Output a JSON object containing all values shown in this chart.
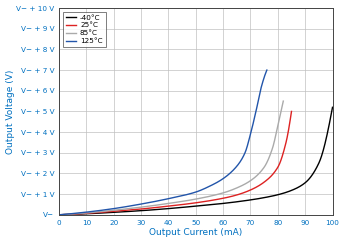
{
  "xlabel": "Output Current (mA)",
  "ylabel": "Output Voltage (V)",
  "xlim": [
    0,
    100
  ],
  "ylim": [
    0,
    10
  ],
  "ytick_labels": [
    "V−",
    "V− + 1 V",
    "V− + 2 V",
    "V− + 3 V",
    "V− + 4 V",
    "V− + 5 V",
    "V− + 6 V",
    "V− + 7 V",
    "V− + 8 V",
    "V− + 9 V",
    "V− + 10 V"
  ],
  "ytick_values": [
    0,
    1,
    2,
    3,
    4,
    5,
    6,
    7,
    8,
    9,
    10
  ],
  "xtick_values": [
    0,
    10,
    20,
    30,
    40,
    50,
    60,
    70,
    80,
    90,
    100
  ],
  "legend_labels": [
    "-40°C",
    "25°C",
    "85°C",
    "125°C"
  ],
  "legend_colors": [
    "#000000",
    "#dd2222",
    "#aaaaaa",
    "#2255aa"
  ],
  "background_color": "#ffffff",
  "grid_color": "#c0c0c0",
  "label_color": "#0070c0",
  "curves": {
    "neg40": {
      "color": "#000000",
      "pts_x": [
        0,
        10,
        20,
        30,
        40,
        50,
        60,
        70,
        75,
        80,
        85,
        90,
        95,
        100
      ],
      "pts_y": [
        0.0,
        0.05,
        0.12,
        0.2,
        0.3,
        0.42,
        0.55,
        0.72,
        0.83,
        0.97,
        1.18,
        1.55,
        2.5,
        5.2
      ]
    },
    "pos25": {
      "color": "#dd2222",
      "pts_x": [
        0,
        10,
        20,
        30,
        40,
        50,
        60,
        65,
        70,
        75,
        80,
        83,
        85
      ],
      "pts_y": [
        0.0,
        0.07,
        0.17,
        0.28,
        0.42,
        0.58,
        0.8,
        0.96,
        1.2,
        1.58,
        2.3,
        3.5,
        5.0
      ]
    },
    "pos85": {
      "color": "#aaaaaa",
      "pts_x": [
        0,
        10,
        20,
        30,
        40,
        50,
        60,
        65,
        70,
        75,
        78,
        80,
        82
      ],
      "pts_y": [
        0.0,
        0.09,
        0.22,
        0.37,
        0.55,
        0.76,
        1.06,
        1.3,
        1.65,
        2.3,
        3.2,
        4.3,
        5.5
      ]
    },
    "pos125": {
      "color": "#2255aa",
      "pts_x": [
        0,
        10,
        20,
        30,
        40,
        50,
        55,
        60,
        65,
        68,
        70,
        72,
        74,
        76
      ],
      "pts_y": [
        0.0,
        0.13,
        0.3,
        0.52,
        0.78,
        1.1,
        1.38,
        1.75,
        2.35,
        3.0,
        3.9,
        5.0,
        6.2,
        7.0
      ]
    }
  }
}
